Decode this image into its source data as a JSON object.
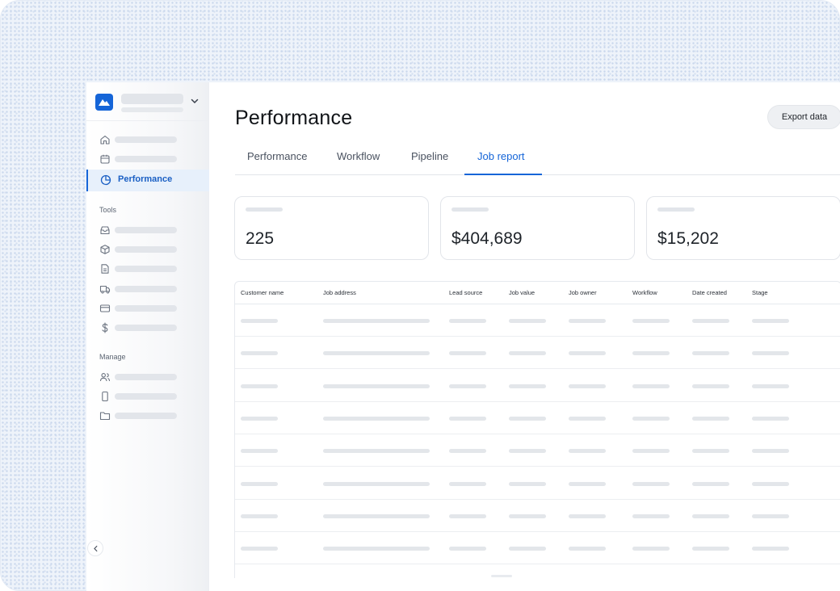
{
  "page": {
    "title": "Performance",
    "export_label": "Export data"
  },
  "tabs": [
    {
      "label": "Performance",
      "active": false
    },
    {
      "label": "Workflow",
      "active": false
    },
    {
      "label": "Pipeline",
      "active": false
    },
    {
      "label": "Job report",
      "active": true
    }
  ],
  "sidebar": {
    "active_item": {
      "label": "Performance",
      "icon": "pie-chart-icon"
    },
    "top_items": [
      {
        "icon": "home-icon"
      },
      {
        "icon": "calendar-icon"
      }
    ],
    "sections": [
      {
        "label": "Tools",
        "items": [
          {
            "icon": "inbox-icon"
          },
          {
            "icon": "box-icon"
          },
          {
            "icon": "document-icon"
          },
          {
            "icon": "truck-icon"
          },
          {
            "icon": "credit-card-icon"
          },
          {
            "icon": "dollar-icon"
          }
        ]
      },
      {
        "label": "Manage",
        "items": [
          {
            "icon": "users-icon"
          },
          {
            "icon": "mobile-icon"
          },
          {
            "icon": "folder-icon"
          }
        ]
      }
    ]
  },
  "stats": [
    {
      "value": "225"
    },
    {
      "value": "$404,689"
    },
    {
      "value": "$15,202"
    }
  ],
  "table": {
    "columns": [
      "Customer name",
      "Job address",
      "Lead source",
      "Job value",
      "Job owner",
      "Workflow",
      "Date created",
      "Stage"
    ],
    "row_count": 8
  },
  "colors": {
    "accent": "#1565d8",
    "active_bg": "#e7f0fb",
    "skeleton": "#e2e5ea"
  }
}
